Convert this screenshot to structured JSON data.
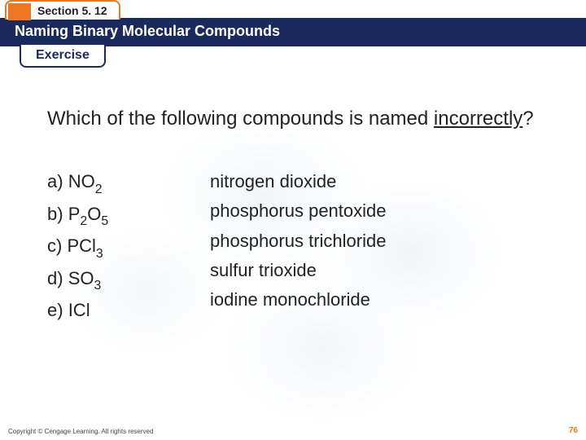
{
  "header": {
    "section_label": "Section 5. 12",
    "title": "Naming Binary Molecular Compounds",
    "exercise_label": "Exercise"
  },
  "question": {
    "prefix": "Which of the following compounds is named ",
    "underlined": "incorrectly",
    "suffix": "?"
  },
  "options": {
    "a": {
      "letter": "a)",
      "formula_parts": [
        "NO",
        "2"
      ],
      "name": "nitrogen dioxide"
    },
    "b": {
      "letter": "b)",
      "formula_parts": [
        "P",
        "2",
        "O",
        "5"
      ],
      "name": "phosphorus pentoxide"
    },
    "c": {
      "letter": "c)",
      "formula_parts": [
        "PCl",
        "3"
      ],
      "name": "phosphorus trichloride"
    },
    "d": {
      "letter": "d)",
      "formula_parts": [
        "SO",
        "3"
      ],
      "name": "sulfur trioxide"
    },
    "e": {
      "letter": "e)",
      "formula_parts": [
        "ICl"
      ],
      "name": "iodine monochloride"
    }
  },
  "footer": {
    "copyright": "Copyright © Cengage Learning. All rights reserved",
    "page": "76"
  },
  "colors": {
    "orange": "#ee7722",
    "navy": "#1a2a5c",
    "text": "#222222",
    "bg": "#ffffff"
  },
  "typography": {
    "title_fontsize": 18,
    "question_fontsize": 24,
    "option_fontsize": 22,
    "footer_fontsize": 8,
    "font_family": "Arial"
  }
}
